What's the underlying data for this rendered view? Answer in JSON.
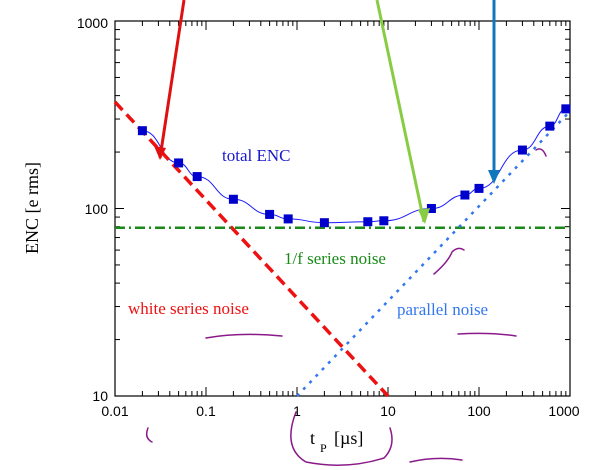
{
  "chart_data": {
    "type": "line",
    "xlabel": "t",
    "xlabel_sub": "P",
    "xlabel_unit": "[µs]",
    "ylabel": "ENC [e rms]",
    "xscale": "log",
    "yscale": "log",
    "xlim": [
      0.01,
      1000
    ],
    "ylim": [
      10,
      1000
    ],
    "x_ticks": [
      "0.01",
      "0.1",
      "1",
      "10",
      "100",
      "1000"
    ],
    "y_ticks": [
      "10",
      "100",
      "1000"
    ],
    "grid": false,
    "series": [
      {
        "name": "total ENC",
        "color": "#1a1aff",
        "style": "solid-with-square-markers",
        "points": [
          [
            0.02,
            260
          ],
          [
            0.05,
            175
          ],
          [
            0.08,
            148
          ],
          [
            0.2,
            112
          ],
          [
            0.5,
            93
          ],
          [
            0.8,
            88
          ],
          [
            2,
            84
          ],
          [
            6,
            85
          ],
          [
            9,
            86
          ],
          [
            30,
            100
          ],
          [
            70,
            118
          ],
          [
            100,
            128
          ],
          [
            300,
            205
          ],
          [
            600,
            275
          ],
          [
            900,
            340
          ]
        ]
      },
      {
        "name": "white series noise",
        "color": "#ee1111",
        "style": "dashed",
        "points": [
          [
            0.01,
            370
          ],
          [
            10,
            10
          ]
        ]
      },
      {
        "name": "1/f series noise",
        "color": "#1a8a1a",
        "style": "dash-dot",
        "points": [
          [
            0.01,
            79
          ],
          [
            1000,
            79
          ]
        ]
      },
      {
        "name": "parallel noise",
        "color": "#3377ee",
        "style": "dotted",
        "points": [
          [
            1,
            10
          ],
          [
            1000,
            330
          ]
        ]
      }
    ],
    "annotation_colors": {
      "arrow_red": "#e01010",
      "arrow_green": "#88cc44",
      "arrow_blue": "#1177bb",
      "scribble": "#8a1a8a"
    }
  }
}
